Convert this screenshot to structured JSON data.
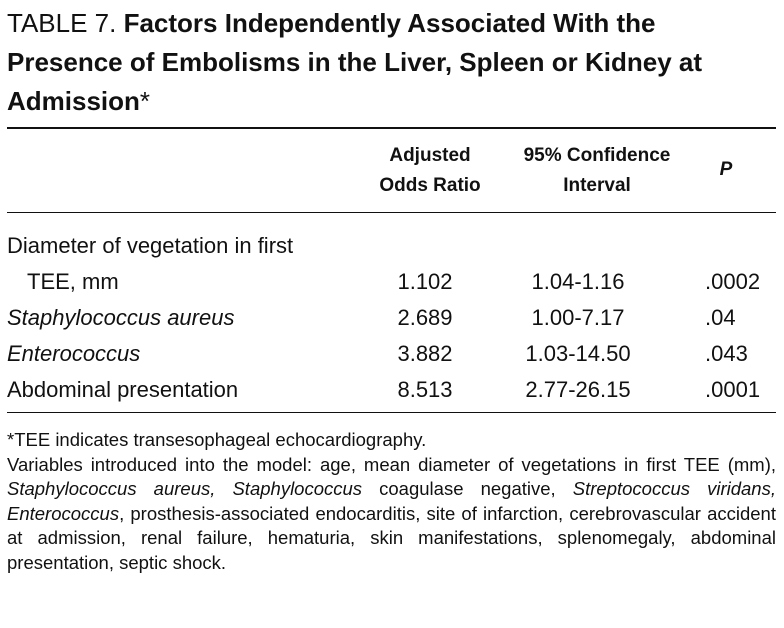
{
  "title": {
    "label": "TABLE 7.",
    "text": "Factors Independently Associated With the Presence of Embolisms in the Liver, Spleen or Kidney at Admission",
    "marker": "*"
  },
  "table": {
    "columns": [
      [
        "Adjusted",
        "Odds Ratio"
      ],
      [
        "95% Confidence",
        "Interval"
      ],
      [
        "P"
      ]
    ],
    "rows": [
      {
        "label": [
          "Diameter of vegetation in first",
          "TEE, mm"
        ],
        "italic": false,
        "values": [
          "1.102",
          "1.04-1.16",
          ".0002"
        ]
      },
      {
        "label": [
          "Staphylococcus aureus"
        ],
        "italic": true,
        "values": [
          "2.689",
          "1.00-7.17",
          ".04"
        ]
      },
      {
        "label": [
          "Enterococcus"
        ],
        "italic": true,
        "values": [
          "3.882",
          "1.03-14.50",
          ".043"
        ]
      },
      {
        "label": [
          "Abdominal presentation"
        ],
        "italic": false,
        "values": [
          "8.513",
          "2.77-26.15",
          ".0001"
        ]
      }
    ]
  },
  "footnotes": [
    {
      "segments": [
        {
          "text": "*TEE indicates transesophageal echocardiography.",
          "italic": false
        }
      ]
    },
    {
      "segments": [
        {
          "text": "Variables introduced into the model: age, mean diameter of vegetations in first TEE (mm), ",
          "italic": false
        },
        {
          "text": "Staphylococcus aureus, Staphylococcus",
          "italic": true
        },
        {
          "text": " coagulase negative, ",
          "italic": false
        },
        {
          "text": "Streptococcus viridans, Enterococcus",
          "italic": true
        },
        {
          "text": ", prosthesis-associated endocarditis, site of infarction, cerebrovascular accident at admission, renal failure, hematuria, skin manifestations, splenomegaly, abdominal presentation, septic shock.",
          "italic": false
        }
      ]
    }
  ]
}
